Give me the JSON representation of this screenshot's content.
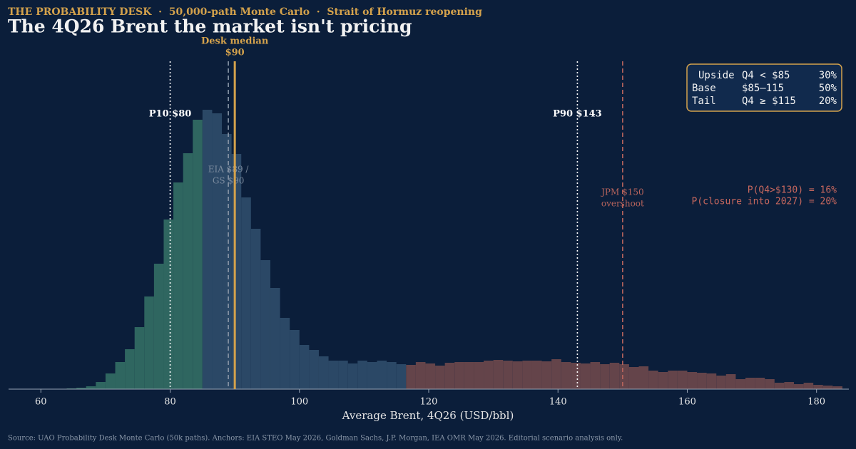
{
  "chart_data": {
    "type": "histogram",
    "kicker": "THE PROBABILITY DESK  ·  50,000-path Monte Carlo  ·  Strait of Hormuz reopening",
    "title": "The 4Q26 Brent the market isn't pricing",
    "xlabel": "Average Brent, 4Q26 (USD/bbl)",
    "source": "Source: UAO Probability Desk Monte Carlo (50k paths). Anchors: EIA STEO May 2026, Goldman Sachs, J.P. Morgan, IEA OMR May 2026.  Editorial scenario analysis only.",
    "xlim": [
      55,
      185
    ],
    "xticks": [
      60,
      80,
      100,
      120,
      140,
      160,
      180
    ],
    "ylim": [
      0,
      460
    ],
    "series": [
      {
        "color": "#2f6660",
        "bins": [
          55,
          56.5,
          58,
          59.5,
          61,
          62.5,
          64,
          65.5,
          67,
          68.5,
          70,
          71.5,
          73,
          74.5,
          76,
          77.5,
          79,
          80.5,
          82,
          83.5,
          85
        ],
        "values": [
          0,
          0,
          0,
          0,
          0,
          0,
          1,
          2,
          4,
          10,
          22,
          38,
          56,
          87,
          130,
          176,
          238,
          290,
          331,
          378
        ]
      },
      {
        "color": "#2b4866",
        "bins": [
          85,
          86.5,
          88,
          89.5,
          91,
          92.5,
          94,
          95.5,
          97,
          98.5,
          100,
          101.5,
          103,
          104.5,
          106,
          107.5,
          109,
          110.5,
          112,
          113.5,
          115,
          116.5
        ],
        "values": [
          392,
          387,
          358,
          330,
          269,
          225,
          181,
          142,
          100,
          83,
          62,
          55,
          46,
          40,
          40,
          36,
          40,
          38,
          40,
          38,
          35
        ]
      },
      {
        "color": "#64444a",
        "bins": [
          116.5,
          118,
          119.5,
          121,
          122.5,
          124,
          125.5,
          127,
          128.5,
          130,
          131.5,
          133,
          134.5,
          136,
          137.5,
          139,
          140.5,
          142,
          143.5,
          145,
          146.5,
          148,
          149.5,
          151,
          152.5,
          154,
          155.5,
          157,
          158.5,
          160,
          161.5,
          163,
          164.5,
          166,
          167.5,
          169,
          170.5,
          172,
          173.5,
          175,
          176.5,
          178,
          179.5,
          181,
          182.5,
          184
        ],
        "values": [
          34,
          38,
          36,
          33,
          37,
          38,
          38,
          38,
          40,
          41,
          40,
          39,
          40,
          40,
          39,
          42,
          38,
          37,
          36,
          38,
          35,
          37,
          35,
          31,
          32,
          26,
          24,
          26,
          26,
          24,
          23,
          22,
          19,
          21,
          14,
          16,
          16,
          14,
          9,
          10,
          7,
          9,
          6,
          5,
          4
        ]
      }
    ],
    "vlines": [
      {
        "value": 80,
        "label": [
          "P10 $80"
        ],
        "color": "#ffffff",
        "style": "dotted"
      },
      {
        "value": 89,
        "label": [
          "EIA $89 /",
          "GS $90"
        ],
        "color": "#8a97a8",
        "style": "dashed"
      },
      {
        "value": 90,
        "label": [
          "Desk median",
          "$90"
        ],
        "color": "#d4a24c",
        "style": "solid"
      },
      {
        "value": 143,
        "label": [
          "P90 $143"
        ],
        "color": "#ffffff",
        "style": "dotted"
      },
      {
        "value": 150,
        "label": [
          "JPM $150",
          "overshoot"
        ],
        "color": "#b8645c",
        "style": "dashed"
      }
    ],
    "scenario_box": [
      [
        "Upside",
        "Q4 < $85",
        "30%"
      ],
      [
        "Base",
        "$85–115",
        "50%"
      ],
      [
        "Tail",
        "Q4 ≥ $115",
        "20%"
      ]
    ],
    "tail_notes": [
      "P(Q4>$130) = 16%",
      "P(closure into 2027) = 20%"
    ]
  }
}
